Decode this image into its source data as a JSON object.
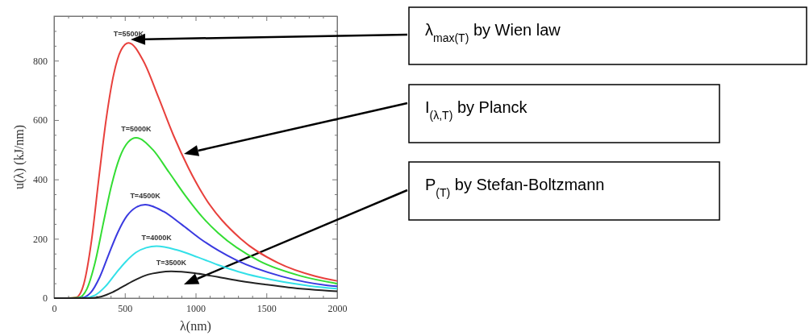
{
  "chart_data": {
    "type": "line",
    "xlabel": "λ(nm)",
    "ylabel": "u(λ)  (kJ/nm)",
    "xlim": [
      0,
      2000
    ],
    "ylim": [
      0,
      950
    ],
    "xticks": [
      0,
      {
        "value": 100,
        "label": null
      },
      {
        "value": 200,
        "label": null
      },
      {
        "value": 300,
        "label": null
      },
      {
        "value": 400,
        "label": null
      },
      500,
      {
        "value": 600,
        "label": null
      },
      {
        "value": 700,
        "label": null
      },
      {
        "value": 800,
        "label": null
      },
      {
        "value": 900,
        "label": null
      },
      1000,
      {
        "value": 1100,
        "label": null
      },
      {
        "value": 1200,
        "label": null
      },
      {
        "value": 1300,
        "label": null
      },
      {
        "value": 1400,
        "label": null
      },
      1500,
      {
        "value": 1600,
        "label": null
      },
      {
        "value": 1700,
        "label": null
      },
      {
        "value": 1800,
        "label": null
      },
      {
        "value": 1900,
        "label": null
      },
      2000
    ],
    "yticks": [
      0,
      {
        "value": 50,
        "label": null
      },
      {
        "value": 100,
        "label": null
      },
      {
        "value": 150,
        "label": null
      },
      200,
      {
        "value": 250,
        "label": null
      },
      {
        "value": 300,
        "label": null
      },
      {
        "value": 350,
        "label": null
      },
      400,
      {
        "value": 450,
        "label": null
      },
      {
        "value": 500,
        "label": null
      },
      {
        "value": 550,
        "label": null
      },
      600,
      {
        "value": 650,
        "label": null
      },
      {
        "value": 700,
        "label": null
      },
      {
        "value": 750,
        "label": null
      },
      800,
      {
        "value": 850,
        "label": null
      },
      {
        "value": 900,
        "label": null
      }
    ],
    "grid": false,
    "marker": "none",
    "line_style": "solid",
    "series": [
      {
        "name": "T=5500K",
        "color": "#e8403c",
        "x": [
          0,
          100,
          158,
          211,
          264,
          316,
          369,
          422,
          474,
          527,
          632,
          738,
          843,
          949,
          1054,
          1318,
          1581,
          1845,
          2000
        ],
        "values": [
          0,
          0,
          3,
          49,
          191,
          402,
          605,
          755,
          836,
          860,
          798,
          676,
          549,
          439,
          348,
          200,
          119,
          74,
          58
        ]
      },
      {
        "name": "T=5000K",
        "color": "#33dd33",
        "x": [
          0,
          100,
          174,
          232,
          290,
          348,
          406,
          464,
          522,
          580,
          696,
          812,
          928,
          1044,
          1160,
          1450,
          1740,
          2000
        ],
        "values": [
          0,
          0,
          2,
          31,
          120,
          252,
          380,
          474,
          525,
          540,
          501,
          424,
          345,
          275,
          219,
          125,
          75,
          49
        ]
      },
      {
        "name": "T=4500K",
        "color": "#3a3ae0",
        "x": [
          0,
          100,
          193,
          258,
          322,
          386,
          451,
          515,
          580,
          644,
          773,
          902,
          1030,
          1159,
          1288,
          1610,
          1932,
          2000
        ],
        "values": [
          0,
          0,
          1,
          18,
          70,
          147,
          222,
          277,
          306,
          315,
          292,
          248,
          201,
          161,
          128,
          73,
          43,
          40
        ]
      },
      {
        "name": "T=4000K",
        "color": "#33e0e8",
        "x": [
          0,
          100,
          217,
          290,
          362,
          434,
          507,
          579,
          652,
          724,
          869,
          1014,
          1158,
          1303,
          1448,
          1810,
          2000
        ],
        "values": [
          0,
          0,
          1,
          10,
          39,
          82,
          123,
          154,
          170,
          175,
          162,
          138,
          112,
          89,
          71,
          41,
          32
        ]
      },
      {
        "name": "T=3500K",
        "color": "#222222",
        "x": [
          0,
          100,
          248,
          331,
          414,
          497,
          580,
          662,
          745,
          828,
          994,
          1159,
          1325,
          1490,
          1656,
          2000
        ],
        "values": [
          0,
          0,
          0,
          5,
          20,
          42,
          63,
          79,
          87,
          90,
          84,
          71,
          57,
          46,
          36,
          23
        ]
      }
    ],
    "annotations": [
      "λ$_{max(T)}$ by Wien law",
      "I$_{(λ,T)}$ by Planck",
      "P$_{(T)}$ by Stefan-Boltzmann"
    ]
  }
}
